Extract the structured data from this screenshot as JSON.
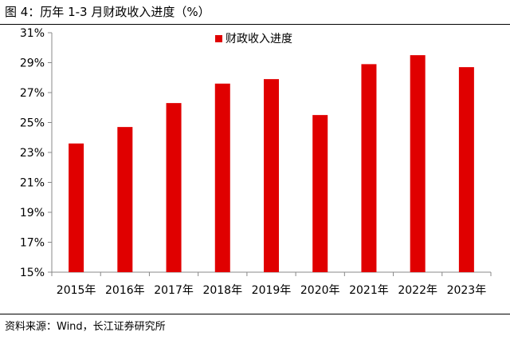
{
  "figure": {
    "title": "图  4：历年 1-3 月财政收入进度（%）",
    "source": "资料来源：Wind，长江证券研究所"
  },
  "colors": {
    "bar": "#e00000",
    "axis": "#888888",
    "text": "#000000"
  },
  "chart_data": {
    "type": "bar",
    "title": "",
    "xlabel": "",
    "ylabel": "",
    "categories": [
      "2015年",
      "2016年",
      "2017年",
      "2018年",
      "2019年",
      "2020年",
      "2021年",
      "2022年",
      "2023年"
    ],
    "series": [
      {
        "name": "财政收入进度",
        "values": [
          23.6,
          24.7,
          26.3,
          27.6,
          27.9,
          25.5,
          28.9,
          29.5,
          28.7
        ]
      }
    ],
    "ylim": [
      15,
      31
    ],
    "yticks": [
      15,
      17,
      19,
      21,
      23,
      25,
      27,
      29,
      31
    ],
    "ytick_suffix": "%",
    "grid": false,
    "legend": "top-center"
  }
}
